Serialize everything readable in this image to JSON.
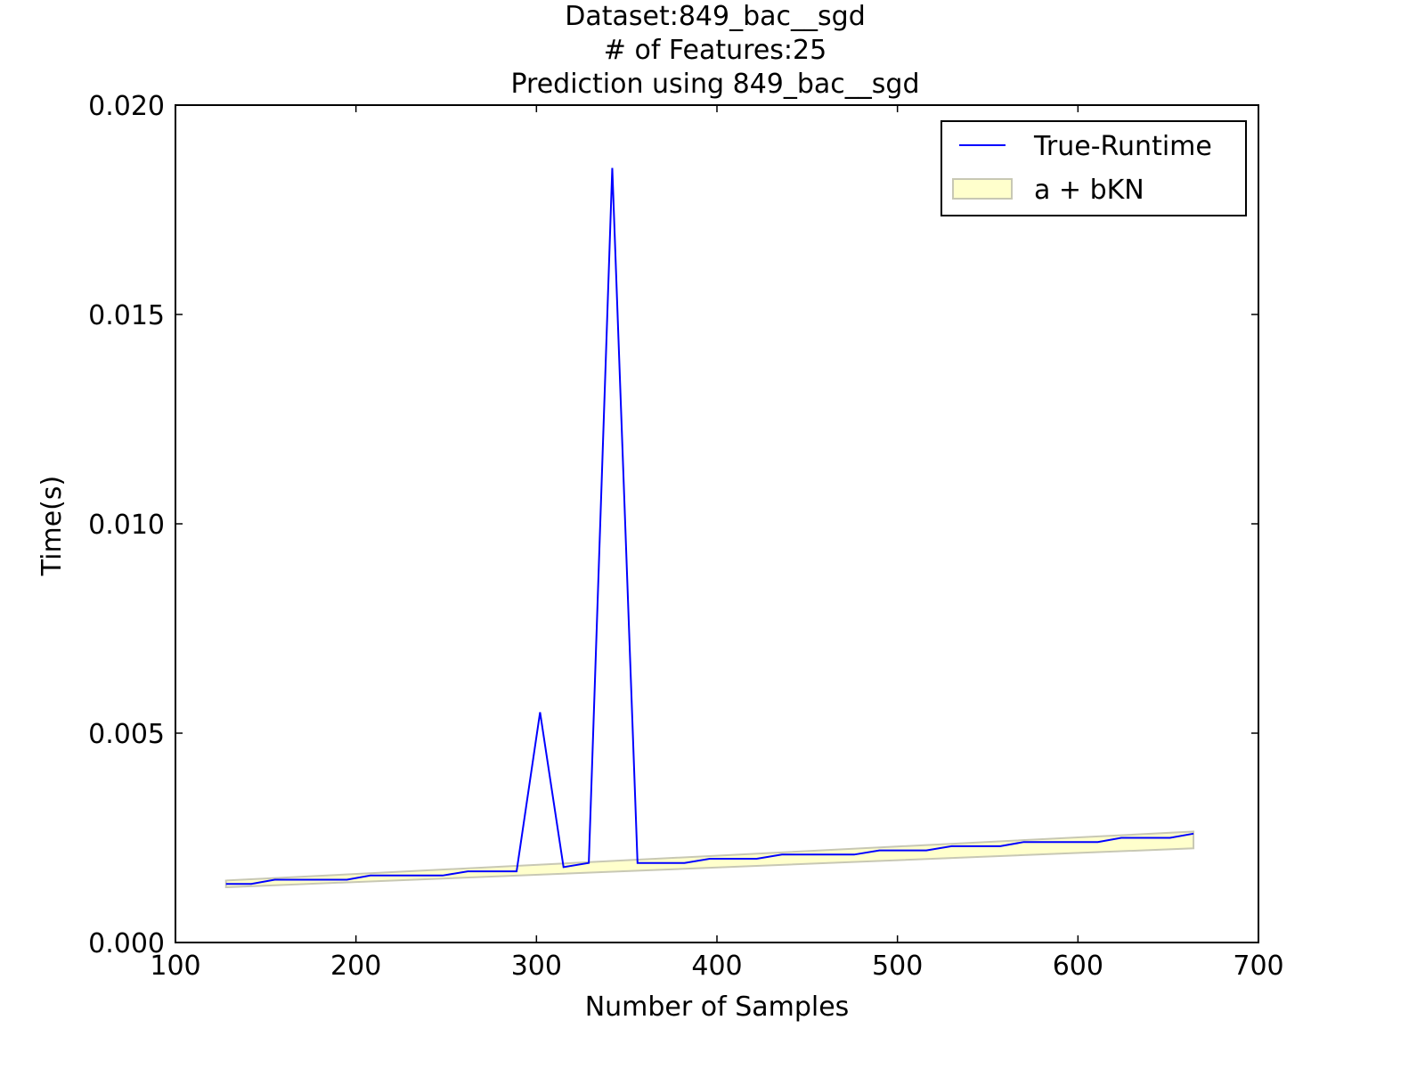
{
  "chart_data": {
    "type": "line",
    "title_lines": [
      "Dataset:849_bac__sgd",
      "# of Features:25",
      "Prediction using 849_bac__sgd"
    ],
    "xlabel": "Number of Samples",
    "ylabel": "Time(s)",
    "xlim": [
      100,
      700
    ],
    "ylim": [
      0,
      0.02
    ],
    "xticks": [
      100,
      200,
      300,
      400,
      500,
      600,
      700
    ],
    "xtick_labels": [
      "100",
      "200",
      "300",
      "400",
      "500",
      "600",
      "700"
    ],
    "yticks": [
      0,
      0.005,
      0.01,
      0.015,
      0.02
    ],
    "ytick_labels": [
      "0.000",
      "0.005",
      "0.010",
      "0.015",
      "0.020"
    ],
    "grid": false,
    "legend_position": "top-right",
    "legend": [
      {
        "label": "True-Runtime",
        "kind": "line"
      },
      {
        "label": "a + bKN",
        "kind": "band"
      }
    ],
    "series": [
      {
        "name": "True-Runtime",
        "color": "#0000ff",
        "x": [
          128,
          142,
          155,
          169,
          182,
          195,
          208,
          222,
          235,
          248,
          262,
          275,
          289,
          302,
          315,
          329,
          342,
          356,
          369,
          382,
          396,
          409,
          422,
          436,
          449,
          463,
          476,
          490,
          503,
          516,
          530,
          543,
          557,
          570,
          584,
          597,
          611,
          624,
          637,
          651,
          664
        ],
        "y": [
          0.0014,
          0.0014,
          0.0015,
          0.0015,
          0.0015,
          0.0015,
          0.0016,
          0.0016,
          0.0016,
          0.0016,
          0.0017,
          0.0017,
          0.0017,
          0.0055,
          0.0018,
          0.0019,
          0.0185,
          0.0019,
          0.0019,
          0.0019,
          0.002,
          0.002,
          0.002,
          0.0021,
          0.0021,
          0.0021,
          0.0021,
          0.0022,
          0.0022,
          0.0022,
          0.0023,
          0.0023,
          0.0023,
          0.0024,
          0.0024,
          0.0024,
          0.0024,
          0.0025,
          0.0025,
          0.0025,
          0.0026
        ]
      }
    ],
    "band": {
      "name": "a + bKN",
      "fill": "#ffffcc",
      "edge": "#c8c8b4",
      "x": [
        128,
        664
      ],
      "lower": [
        0.00132,
        0.00225
      ],
      "upper": [
        0.00148,
        0.00265
      ]
    },
    "colors": {
      "axes": "#000000",
      "background": "#ffffff"
    }
  }
}
